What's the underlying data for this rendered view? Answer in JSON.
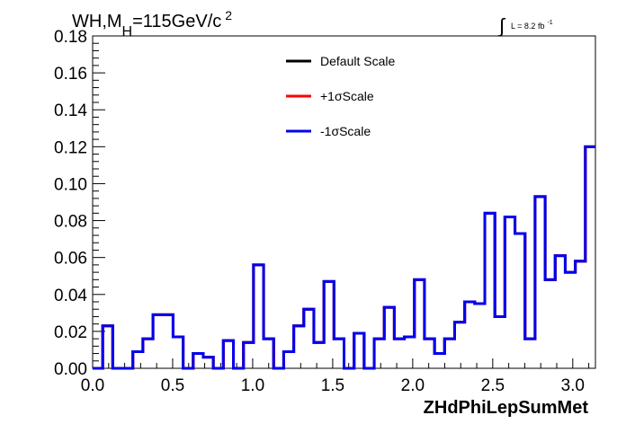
{
  "chart_data": {
    "type": "line",
    "title_main": "WH,M",
    "title_sub": "H",
    "title_rest": "=115GeV/c",
    "title_sup": "2",
    "lumi_symbol": "∫",
    "lumi_text": "L = 8.2 fb",
    "lumi_sup": "-1",
    "xlabel": "ZHdPhiLepSumMet",
    "xlim": [
      0.0,
      3.1416
    ],
    "ylim": [
      0.0,
      0.18
    ],
    "x_ticks": [
      "0.0",
      "0.5",
      "1.0",
      "1.5",
      "2.0",
      "2.5",
      "3.0"
    ],
    "x_tick_values": [
      0.0,
      0.5,
      1.0,
      1.5,
      2.0,
      2.5,
      3.0
    ],
    "y_ticks": [
      "0.00",
      "0.02",
      "0.04",
      "0.06",
      "0.08",
      "0.10",
      "0.12",
      "0.14",
      "0.16",
      "0.18"
    ],
    "y_tick_values": [
      0.0,
      0.02,
      0.04,
      0.06,
      0.08,
      0.1,
      0.12,
      0.14,
      0.16,
      0.18
    ],
    "bin_count": 50,
    "series": [
      {
        "name": "Default Scale",
        "color": "#000000",
        "values": [
          0.0,
          0.023,
          0.0,
          0.0,
          0.009,
          0.016,
          0.029,
          0.029,
          0.017,
          0.0,
          0.008,
          0.006,
          0.0,
          0.015,
          0.0,
          0.014,
          0.056,
          0.016,
          0.0,
          0.009,
          0.023,
          0.032,
          0.014,
          0.047,
          0.016,
          0.0,
          0.019,
          0.0,
          0.016,
          0.033,
          0.016,
          0.017,
          0.048,
          0.016,
          0.008,
          0.016,
          0.025,
          0.036,
          0.035,
          0.084,
          0.028,
          0.082,
          0.073,
          0.016,
          0.093,
          0.048,
          0.061,
          0.052,
          0.058,
          0.12
        ]
      },
      {
        "name": "+1σScale",
        "color": "#ff0000",
        "values": [
          0.0,
          0.023,
          0.0,
          0.0,
          0.009,
          0.016,
          0.029,
          0.029,
          0.017,
          0.0,
          0.008,
          0.006,
          0.0,
          0.015,
          0.0,
          0.014,
          0.056,
          0.016,
          0.0,
          0.009,
          0.023,
          0.032,
          0.014,
          0.047,
          0.016,
          0.0,
          0.019,
          0.0,
          0.016,
          0.033,
          0.016,
          0.017,
          0.048,
          0.016,
          0.008,
          0.016,
          0.025,
          0.036,
          0.035,
          0.084,
          0.028,
          0.082,
          0.073,
          0.016,
          0.093,
          0.048,
          0.061,
          0.052,
          0.058,
          0.12
        ]
      },
      {
        "name": "-1σScale",
        "color": "#0000ee",
        "values": [
          0.0,
          0.023,
          0.0,
          0.0,
          0.009,
          0.016,
          0.029,
          0.029,
          0.017,
          0.0,
          0.008,
          0.006,
          0.0,
          0.015,
          0.0,
          0.014,
          0.056,
          0.016,
          0.0,
          0.009,
          0.023,
          0.032,
          0.014,
          0.047,
          0.016,
          0.0,
          0.019,
          0.0,
          0.016,
          0.033,
          0.016,
          0.017,
          0.048,
          0.016,
          0.008,
          0.016,
          0.025,
          0.036,
          0.035,
          0.084,
          0.028,
          0.082,
          0.073,
          0.016,
          0.093,
          0.048,
          0.061,
          0.052,
          0.058,
          0.12
        ]
      }
    ],
    "legend_position": "top-center"
  }
}
